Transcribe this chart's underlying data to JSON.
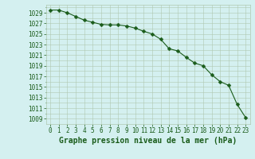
{
  "x": [
    0,
    1,
    2,
    3,
    4,
    5,
    6,
    7,
    8,
    9,
    10,
    11,
    12,
    13,
    14,
    15,
    16,
    17,
    18,
    19,
    20,
    21,
    22,
    23
  ],
  "y": [
    1029.5,
    1029.5,
    1029.0,
    1028.3,
    1027.6,
    1027.2,
    1026.8,
    1026.7,
    1026.7,
    1026.5,
    1026.1,
    1025.5,
    1025.0,
    1024.0,
    1022.2,
    1021.8,
    1020.6,
    1019.5,
    1019.0,
    1017.3,
    1016.0,
    1015.3,
    1011.7,
    1009.2
  ],
  "line_color": "#1a5c1a",
  "marker": "D",
  "marker_size": 2.5,
  "bg_color": "#d4f0f0",
  "grid_color": "#b0c8b0",
  "xlabel": "Graphe pression niveau de la mer (hPa)",
  "xlabel_fontsize": 7,
  "ytick_labels": [
    1009,
    1011,
    1013,
    1015,
    1017,
    1019,
    1021,
    1023,
    1025,
    1027,
    1029
  ],
  "ylim": [
    1008.0,
    1030.5
  ],
  "xlim": [
    -0.5,
    23.5
  ],
  "xtick_fontsize": 5.5,
  "ytick_fontsize": 5.5,
  "tick_color": "#1a5c1a",
  "linewidth": 0.8
}
